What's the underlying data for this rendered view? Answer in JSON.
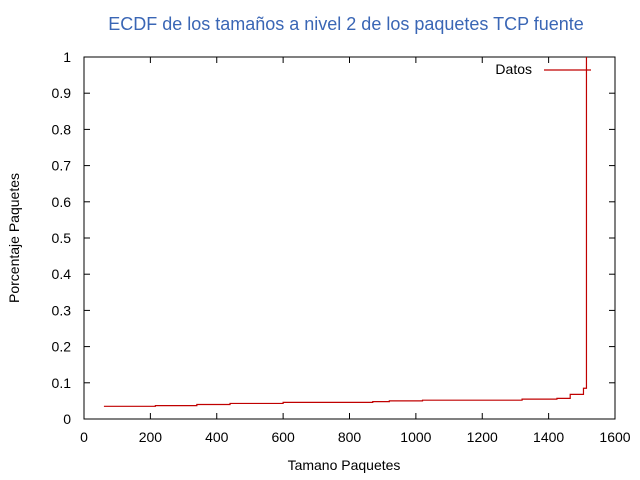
{
  "chart_data": {
    "type": "line",
    "title": "ECDF de los tamaños a nivel 2 de los paquetes TCP fuente",
    "xlabel": "Tamano Paquetes",
    "ylabel": "Porcentaje Paquetes",
    "xlim": [
      0,
      1600
    ],
    "ylim": [
      0,
      1
    ],
    "x_ticks": [
      "0",
      "200",
      "400",
      "600",
      "800",
      "1000",
      "1200",
      "1400",
      "1600"
    ],
    "y_ticks": [
      "0",
      "0.1",
      "0.2",
      "0.3",
      "0.4",
      "0.5",
      "0.6",
      "0.7",
      "0.8",
      "0.9",
      "1"
    ],
    "grid": false,
    "legend_position": "top-right",
    "colors": {
      "title": "#3a66b5",
      "series": "#c00000",
      "axes": "#000000"
    },
    "series": [
      {
        "name": "Datos",
        "step": true,
        "x": [
          60,
          215,
          340,
          440,
          600,
          870,
          920,
          1020,
          1320,
          1425,
          1465,
          1505,
          1514,
          1514
        ],
        "y": [
          0.035,
          0.037,
          0.04,
          0.043,
          0.046,
          0.048,
          0.05,
          0.052,
          0.055,
          0.057,
          0.068,
          0.085,
          0.088,
          1.0
        ]
      }
    ]
  }
}
